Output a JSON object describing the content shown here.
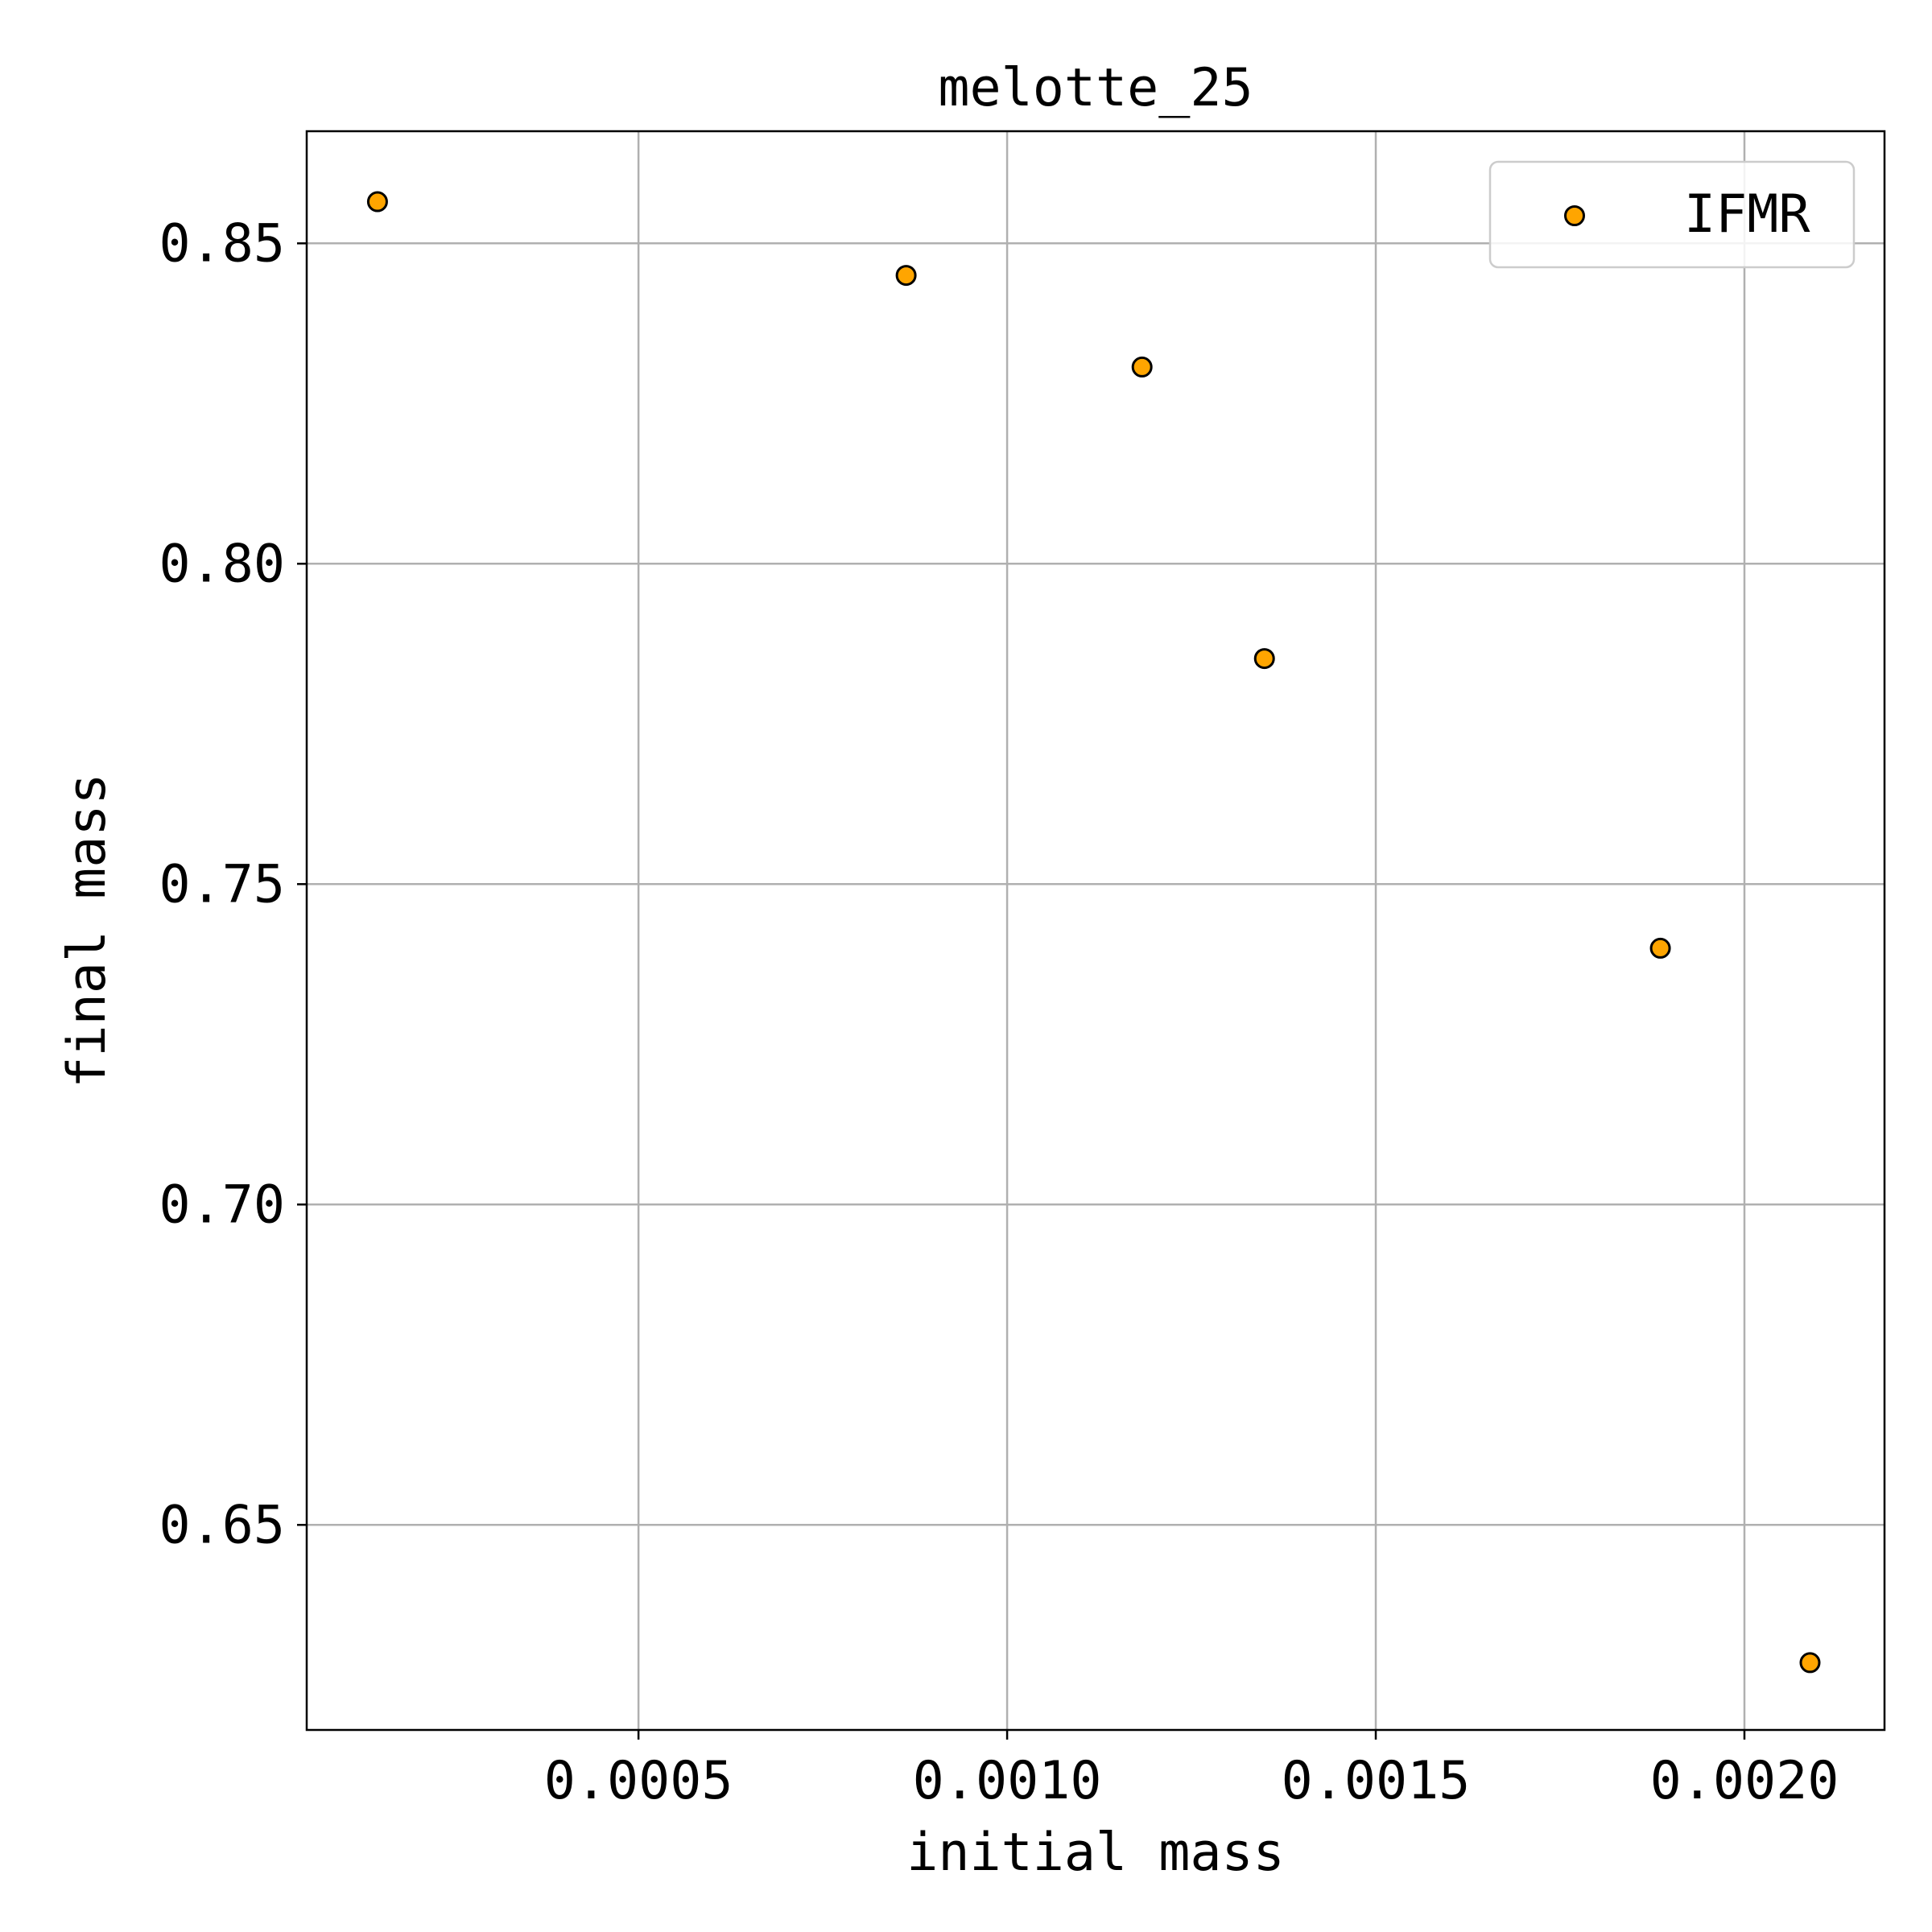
{
  "chart_data": {
    "type": "scatter",
    "title": "melotte_25",
    "xlabel": "initial mass",
    "ylabel": "final mass",
    "xlim": [
      5e-05,
      0.00219
    ],
    "ylim": [
      0.618,
      0.8675
    ],
    "xticks": [
      0.0005,
      0.001,
      0.0015,
      0.002
    ],
    "xtick_labels": [
      "0.0005",
      "0.0010",
      "0.0015",
      "0.0020"
    ],
    "yticks": [
      0.65,
      0.7,
      0.75,
      0.8,
      0.85
    ],
    "ytick_labels": [
      "0.65",
      "0.70",
      "0.75",
      "0.80",
      "0.85"
    ],
    "grid": true,
    "legend": {
      "position": "top-right"
    },
    "series": [
      {
        "name": "IFMR",
        "color": "#FFA500",
        "edge_color": "#000000",
        "x": [
          0.000146,
          0.000863,
          0.001183,
          0.001349,
          0.001886,
          0.002089
        ],
        "y": [
          0.8565,
          0.845,
          0.8307,
          0.7852,
          0.74,
          0.6285
        ]
      }
    ]
  }
}
